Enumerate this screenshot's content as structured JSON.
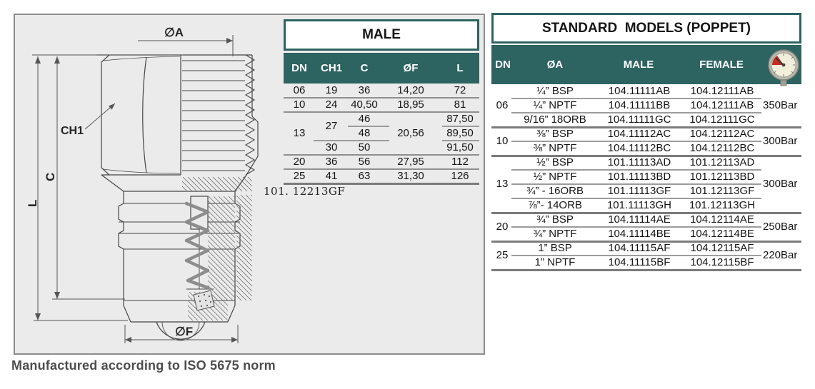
{
  "colors": {
    "teal": "#2d6361",
    "panel_bg": "#ebebeb",
    "inner_line": "#9c9c9c",
    "group_line": "#7b7b7b",
    "full_line": "#8f8f8f"
  },
  "part_code": "101. 12213GF",
  "caption": "Manufactured according to ISO 5675 norm",
  "drawing": {
    "labels": {
      "dia_a": "∅A",
      "ch1": "CH1",
      "c": "C",
      "l": "L",
      "dia_f": "∅F"
    }
  },
  "male_table": {
    "title": "MALE",
    "headers": [
      "DN",
      "CH1",
      "C",
      "ØF",
      "L"
    ],
    "rows_top": [
      {
        "dn": "06",
        "ch1": "19",
        "c": "36",
        "f": "14,20",
        "l": "72"
      },
      {
        "dn": "10",
        "ch1": "24",
        "c": "40,50",
        "f": "18,95",
        "l": "81"
      }
    ],
    "group13": {
      "dn": "13",
      "ch1_top": "27",
      "ch1_bottom": "30",
      "c": [
        "46",
        "48",
        "50"
      ],
      "f": "20,56",
      "l": [
        "87,50",
        "89,50",
        "91,50"
      ]
    },
    "rows_bottom": [
      {
        "dn": "20",
        "ch1": "36",
        "c": "56",
        "f": "27,95",
        "l": "112"
      },
      {
        "dn": "25",
        "ch1": "41",
        "c": "63",
        "f": "31,30",
        "l": "126"
      }
    ]
  },
  "standard_table": {
    "title": "STANDARD  MODELS (POPPET)",
    "headers": [
      "DN",
      "ØA",
      "MALE",
      "FEMALE"
    ],
    "gauge_icon": "pressure-gauge-icon",
    "groups": [
      {
        "dn": "06",
        "pressure": "350Bar",
        "rows": [
          {
            "oa": "¼” BSP",
            "male": "104.11111AB",
            "female": "104.12111AB"
          },
          {
            "oa": "¼” NPTF",
            "male": "104.11111BB",
            "female": "104.12111AB"
          },
          {
            "oa": "9/16” 18ORB",
            "male": "104.11111GC",
            "female": "104.12111GC"
          }
        ]
      },
      {
        "dn": "10",
        "pressure": "300Bar",
        "rows": [
          {
            "oa": "⅜” BSP",
            "male": "104.11112AC",
            "female": "104.12112AC"
          },
          {
            "oa": "⅜” NPTF",
            "male": "104.11112BC",
            "female": "104.12112BC"
          }
        ]
      },
      {
        "dn": "13",
        "pressure": "300Bar",
        "rows": [
          {
            "oa": "½” BSP",
            "male": "101.11113AD",
            "female": "101.12113AD"
          },
          {
            "oa": "½” NPTF",
            "male": "101.11113BD",
            "female": "101.12113BD"
          },
          {
            "oa": "¾” - 16ORB",
            "male": "101.11113GF",
            "female": "101.12113GF"
          },
          {
            "oa": "⅞”- 14ORB",
            "male": "101.11113GH",
            "female": "101.12113GH"
          }
        ]
      },
      {
        "dn": "20",
        "pressure": "250Bar",
        "rows": [
          {
            "oa": "¾” BSP",
            "male": "104.11114AE",
            "female": "104.12114AE"
          },
          {
            "oa": "¾” NPTF",
            "male": "104.11114BE",
            "female": "104.12114BE"
          }
        ]
      },
      {
        "dn": "25",
        "pressure": "220Bar",
        "rows": [
          {
            "oa": "1” BSP",
            "male": "104.11115AF",
            "female": "104.12115AF"
          },
          {
            "oa": "1” NPTF",
            "male": "104.11115BF",
            "female": "104.12115BF"
          }
        ]
      }
    ]
  }
}
